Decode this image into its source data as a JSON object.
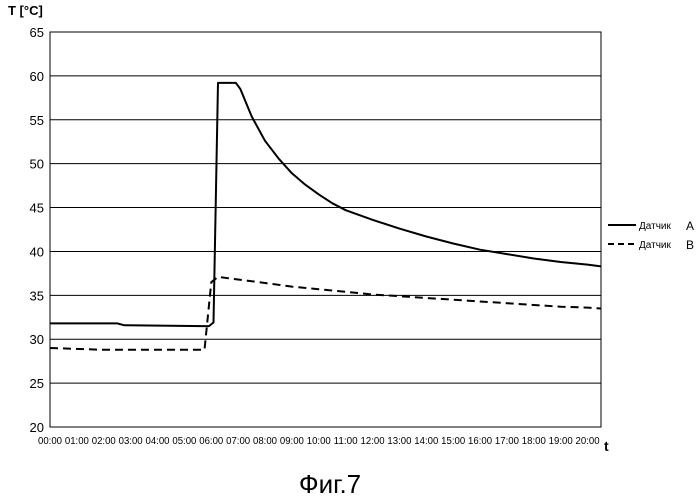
{
  "chart_data": {
    "type": "line",
    "ylabel": "T [°C]",
    "xlabel": "t",
    "caption": "Фиг.7",
    "ylim": [
      20,
      65
    ],
    "yticks": [
      20,
      25,
      30,
      35,
      40,
      45,
      50,
      55,
      60,
      65
    ],
    "xlim": [
      0,
      20.5
    ],
    "xticks": [
      "00:00",
      "01:00",
      "02:00",
      "03:00",
      "04:00",
      "05:00",
      "06:00",
      "07:00",
      "08:00",
      "09:00",
      "10:00",
      "11:00",
      "12:00",
      "13:00",
      "14:00",
      "15:00",
      "16:00",
      "17:00",
      "18:00",
      "19:00",
      "20:00"
    ],
    "grid": "horizontal",
    "legend": "right",
    "series": [
      {
        "name_prefix": "Датчик",
        "name_letter": "A",
        "style": "solid",
        "color": "#000000",
        "x": [
          "00:00",
          "02:30",
          "02:45",
          "05:40",
          "05:55",
          "06:05",
          "06:15",
          "06:55",
          "07:05",
          "07:30",
          "08:00",
          "08:30",
          "09:00",
          "09:30",
          "10:00",
          "10:30",
          "11:00",
          "12:00",
          "13:00",
          "14:00",
          "15:00",
          "16:00",
          "17:00",
          "18:00",
          "19:00",
          "20:00",
          "20:30"
        ],
        "y": [
          31.8,
          31.8,
          31.6,
          31.5,
          31.5,
          31.9,
          59.2,
          59.2,
          58.5,
          55.4,
          52.6,
          50.6,
          48.9,
          47.6,
          46.5,
          45.5,
          44.7,
          43.6,
          42.6,
          41.7,
          40.9,
          40.2,
          39.7,
          39.2,
          38.8,
          38.5,
          38.3
        ]
      },
      {
        "name_prefix": "Датчик",
        "name_letter": "B",
        "style": "dashed",
        "color": "#000000",
        "x": [
          "00:00",
          "02:00",
          "05:30",
          "05:45",
          "06:00",
          "06:15",
          "07:00",
          "08:00",
          "09:00",
          "10:00",
          "11:00",
          "12:00",
          "13:00",
          "14:00",
          "15:00",
          "16:00",
          "17:00",
          "18:00",
          "19:00",
          "20:00",
          "20:30"
        ],
        "y": [
          29.0,
          28.8,
          28.8,
          28.8,
          36.5,
          37.1,
          36.8,
          36.4,
          36.0,
          35.7,
          35.4,
          35.1,
          34.9,
          34.7,
          34.5,
          34.3,
          34.1,
          33.9,
          33.7,
          33.6,
          33.5
        ]
      }
    ]
  }
}
